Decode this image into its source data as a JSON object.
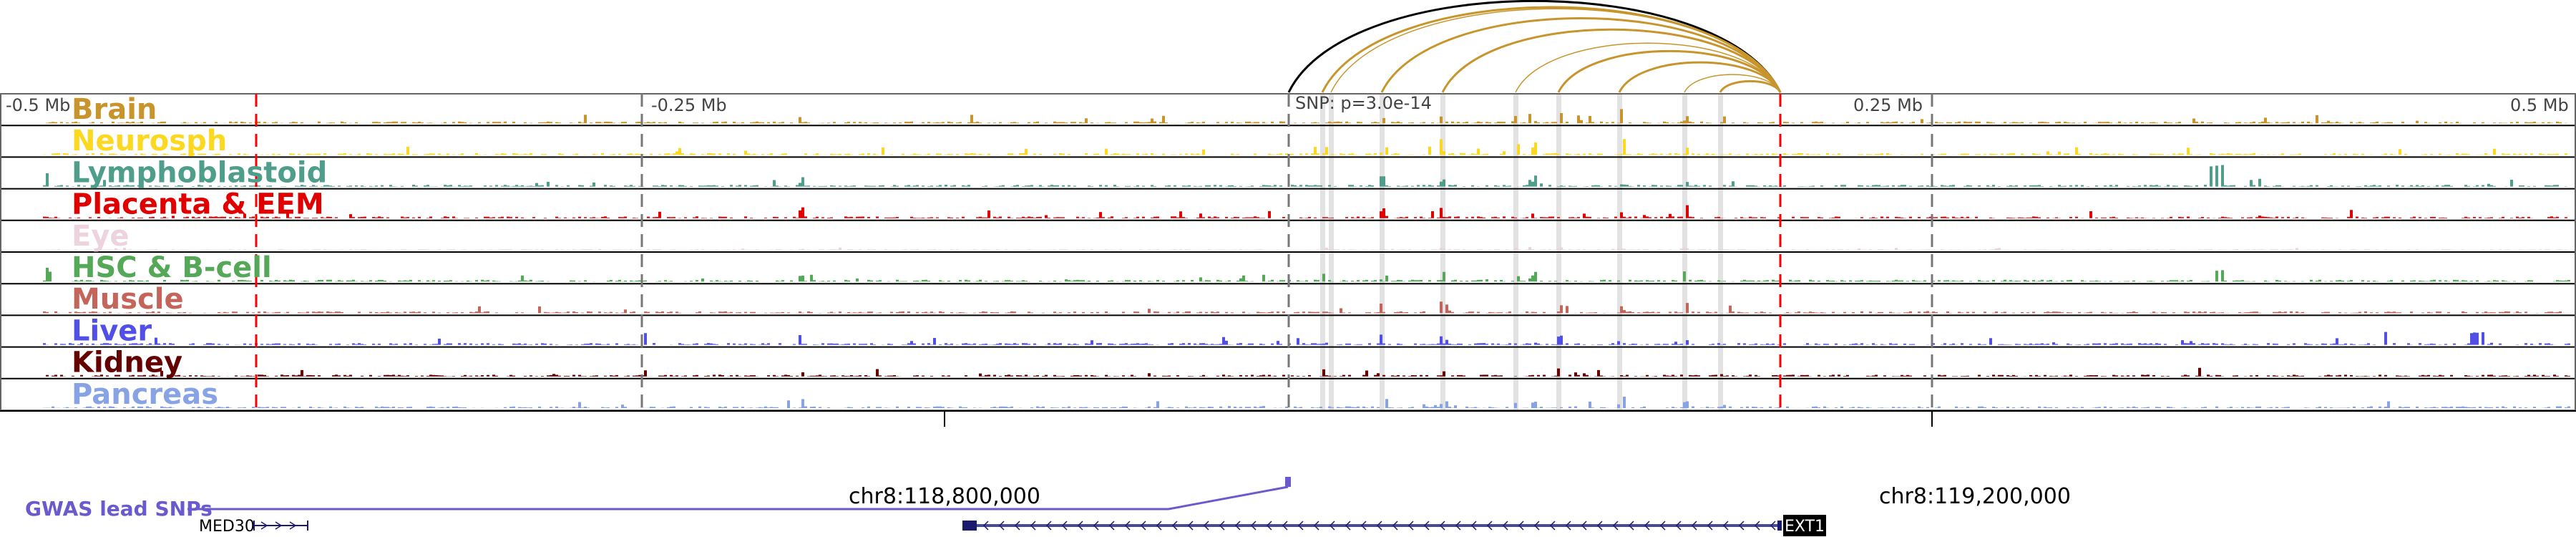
{
  "axis_ticks": [
    "-0.5 Mb",
    "-0.25 Mb",
    "0.25 Mb",
    "0.5 Mb"
  ],
  "snp_label": "SNP: p=3.0e-14",
  "tracks": [
    {
      "name": "Brain",
      "color": "#c8952c"
    },
    {
      "name": "Neurosph",
      "color": "#fcd820"
    },
    {
      "name": "Lymphoblastoid",
      "color": "#4f9e8c"
    },
    {
      "name": "Placenta & EEM",
      "color": "#e00000"
    },
    {
      "name": "Eye",
      "color": "#ecd3de"
    },
    {
      "name": "HSC & B-cell",
      "color": "#54a857"
    },
    {
      "name": "Muscle",
      "color": "#c4655c"
    },
    {
      "name": "Liver",
      "color": "#5050e6"
    },
    {
      "name": "Kidney",
      "color": "#650000"
    },
    {
      "name": "Pancreas",
      "color": "#87a3e3"
    }
  ],
  "coordinates": [
    "chr8:118,800,000",
    "chr8:119,200,000"
  ],
  "gwas_label": "GWAS lead SNPs",
  "genes": [
    {
      "name": "MED30",
      "strand": "+"
    },
    {
      "name": "EXT1",
      "strand": "-"
    }
  ],
  "colors": {
    "arc": "#c8952c",
    "main_arc": "#000000",
    "boundary": "#ff0000",
    "highlight": "#e2e2e2",
    "gwas": "#6a5acd",
    "gene": "#1a1a6e"
  }
}
